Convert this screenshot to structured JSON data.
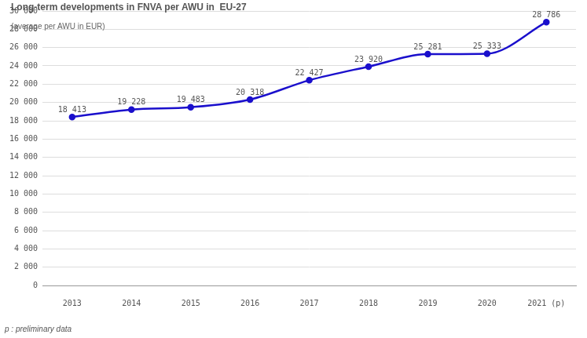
{
  "chart_data": {
    "type": "line",
    "title": "Long-term developments in FNVA per AWU in  EU-27",
    "subtitle": "(average per AWU in EUR)",
    "footnote": "p : preliminary data",
    "categories": [
      "2013",
      "2014",
      "2015",
      "2016",
      "2017",
      "2018",
      "2019",
      "2020",
      "2021 (p)"
    ],
    "values": [
      18413,
      19228,
      19483,
      20318,
      22427,
      23920,
      25281,
      25333,
      28786
    ],
    "value_labels": [
      "18 413",
      "19 228",
      "19 483",
      "20 318",
      "22 427",
      "23 920",
      "25 281",
      "25 333",
      "28 786"
    ],
    "color": "#1a0fcc",
    "marker": "circle",
    "ylim": [
      0,
      30000
    ],
    "yticks": [
      0,
      {
        "value": 2000,
        "label": "2 000"
      },
      {
        "value": 4000,
        "label": "4 000"
      },
      {
        "value": 6000,
        "label": "6 000"
      },
      {
        "value": 8000,
        "label": "8 000"
      },
      {
        "value": 10000,
        "label": "10 000"
      },
      {
        "value": 12000,
        "label": "12 000"
      },
      {
        "value": 14000,
        "label": "14 000"
      },
      {
        "value": 16000,
        "label": "16 000"
      },
      {
        "value": 18000,
        "label": "18 000"
      },
      {
        "value": 20000,
        "label": "20 000"
      },
      {
        "value": 22000,
        "label": "22 000"
      },
      {
        "value": 24000,
        "label": "24 000"
      },
      {
        "value": 26000,
        "label": "26 000"
      },
      {
        "value": 28000,
        "label": "28 000"
      },
      {
        "value": 30000,
        "label": "30 000"
      }
    ],
    "grid": true,
    "data_labels": true
  }
}
